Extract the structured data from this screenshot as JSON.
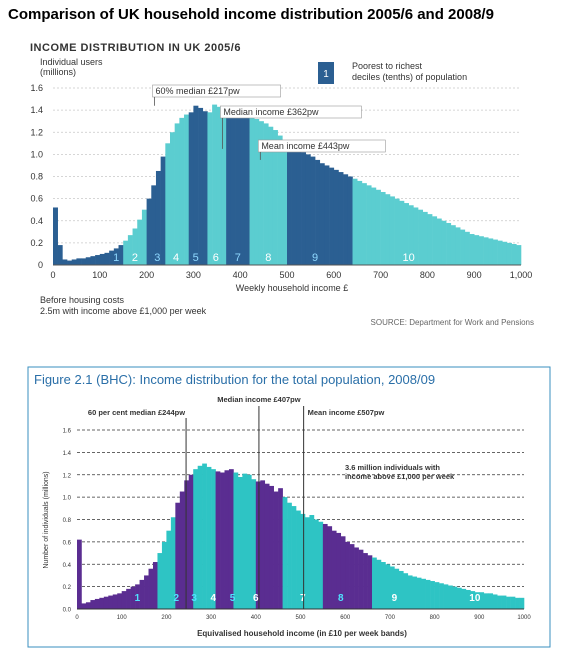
{
  "page": {
    "title": "Comparison of UK household income distribution 2005/6 and 2008/9"
  },
  "colors": {
    "dark": "#2b5f92",
    "light": "#5bcdd0",
    "purple": "#5a2d91",
    "teal": "#2ec4c4",
    "fig2_border": "#3a8fbf"
  },
  "chart_data": [
    {
      "type": "bar",
      "title": "INCOME DISTRIBUTION IN UK 2005/6",
      "ylabel_line1": "Individual users",
      "ylabel_line2": "(millions)",
      "xlabel": "Weekly household income £",
      "xlim": [
        0,
        1000
      ],
      "ylim": [
        0,
        1.6
      ],
      "grid": true,
      "bin_width": 10,
      "x_ticks": [
        "0",
        "100",
        "200",
        "300",
        "400",
        "500",
        "600",
        "700",
        "800",
        "900",
        "1,000"
      ],
      "x_tick_values": [
        0,
        100,
        200,
        300,
        400,
        500,
        600,
        700,
        800,
        900,
        1000
      ],
      "y_ticks": [
        "0",
        "0.2",
        "0.4",
        "0.6",
        "0.8",
        "1.0",
        "1.2",
        "1.4",
        "1.6"
      ],
      "y_tick_values": [
        0,
        0.2,
        0.4,
        0.6,
        0.8,
        1.0,
        1.2,
        1.4,
        1.6
      ],
      "legend": {
        "box_label": "1",
        "text_line1": "Poorest to richest",
        "text_line2": "deciles (tenths) of population"
      },
      "annotations": [
        {
          "text": "60% median £217pw",
          "x": 217
        },
        {
          "text": "Median income £362pw",
          "x": 362
        },
        {
          "text": "Mean income £443pw",
          "x": 443
        }
      ],
      "decile_labels": [
        "1",
        "2",
        "3",
        "4",
        "5",
        "6",
        "7",
        "8",
        "9",
        "10"
      ],
      "decile_boundaries": [
        0,
        155,
        205,
        245,
        290,
        330,
        375,
        425,
        505,
        640,
        1000
      ],
      "decile_label_x": [
        135,
        175,
        223,
        263,
        305,
        348,
        395,
        460,
        560,
        760
      ],
      "values": [
        0.52,
        0.18,
        0.05,
        0.04,
        0.05,
        0.06,
        0.06,
        0.07,
        0.08,
        0.09,
        0.1,
        0.11,
        0.13,
        0.15,
        0.18,
        0.22,
        0.27,
        0.33,
        0.41,
        0.5,
        0.6,
        0.72,
        0.85,
        0.98,
        1.1,
        1.2,
        1.28,
        1.33,
        1.36,
        1.38,
        1.44,
        1.42,
        1.39,
        1.38,
        1.45,
        1.43,
        1.4,
        1.42,
        1.43,
        1.38,
        1.37,
        1.35,
        1.33,
        1.32,
        1.3,
        1.28,
        1.25,
        1.22,
        1.17,
        1.12,
        1.08,
        1.05,
        1.05,
        1.02,
        1.0,
        0.98,
        0.95,
        0.92,
        0.9,
        0.88,
        0.86,
        0.84,
        0.82,
        0.8,
        0.78,
        0.76,
        0.74,
        0.72,
        0.7,
        0.68,
        0.66,
        0.64,
        0.62,
        0.6,
        0.58,
        0.56,
        0.54,
        0.52,
        0.5,
        0.48,
        0.46,
        0.44,
        0.42,
        0.4,
        0.38,
        0.36,
        0.34,
        0.32,
        0.3,
        0.28,
        0.27,
        0.26,
        0.25,
        0.24,
        0.23,
        0.22,
        0.21,
        0.2,
        0.19,
        0.18
      ],
      "footnote_line1": "Before housing costs",
      "footnote_line2": "2.5m with income above £1,000 per week",
      "source": "SOURCE: Department for Work and Pensions"
    },
    {
      "type": "bar",
      "title": "Figure 2.1 (BHC): Income distribution for the total population, 2008/09",
      "ylabel": "Number of individuals (millions)",
      "xlabel": "Equivalised household income (in £10 per week bands)",
      "xlim": [
        0,
        1000
      ],
      "ylim": [
        0,
        1.6
      ],
      "grid": true,
      "bin_width": 10,
      "x_ticks": [
        "0",
        "100",
        "200",
        "300",
        "400",
        "500",
        "600",
        "700",
        "800",
        "900",
        "1000"
      ],
      "x_tick_values": [
        0,
        100,
        200,
        300,
        400,
        500,
        600,
        700,
        800,
        900,
        1000
      ],
      "y_ticks": [
        "0.0",
        "0.2",
        "0.4",
        "0.6",
        "0.8",
        "1.0",
        "1.2",
        "1.4",
        "1.6"
      ],
      "y_tick_values": [
        0,
        0.2,
        0.4,
        0.6,
        0.8,
        1.0,
        1.2,
        1.4,
        1.6
      ],
      "annotations": [
        {
          "text": "Median income £407pw",
          "x": 407
        },
        {
          "text": "60 per cent median £244pw",
          "x": 244
        },
        {
          "text": "Mean income £507pw",
          "x": 507
        }
      ],
      "note_line1": "3.6 million individuals with",
      "note_line2": "income above £1,000 per week",
      "decile_labels": [
        "1",
        "2",
        "3",
        "4",
        "5",
        "6",
        "7",
        "8",
        "9",
        "10"
      ],
      "decile_boundaries": [
        0,
        185,
        220,
        265,
        310,
        355,
        405,
        465,
        555,
        665,
        1000
      ],
      "decile_label_x": [
        135,
        222,
        262,
        305,
        348,
        400,
        505,
        590,
        710,
        890
      ],
      "values": [
        0.62,
        0.05,
        0.06,
        0.08,
        0.09,
        0.1,
        0.11,
        0.12,
        0.13,
        0.14,
        0.16,
        0.18,
        0.2,
        0.22,
        0.26,
        0.3,
        0.36,
        0.42,
        0.5,
        0.6,
        0.7,
        0.82,
        0.95,
        1.05,
        1.15,
        1.2,
        1.25,
        1.28,
        1.3,
        1.27,
        1.25,
        1.23,
        1.22,
        1.24,
        1.25,
        1.22,
        1.18,
        1.21,
        1.2,
        1.16,
        1.14,
        1.15,
        1.12,
        1.1,
        1.05,
        1.08,
        1.0,
        0.95,
        0.92,
        0.88,
        0.85,
        0.82,
        0.84,
        0.8,
        0.78,
        0.76,
        0.74,
        0.7,
        0.68,
        0.65,
        0.6,
        0.58,
        0.55,
        0.53,
        0.5,
        0.48,
        0.46,
        0.44,
        0.42,
        0.4,
        0.38,
        0.36,
        0.34,
        0.32,
        0.3,
        0.29,
        0.28,
        0.27,
        0.26,
        0.25,
        0.24,
        0.23,
        0.22,
        0.21,
        0.2,
        0.19,
        0.18,
        0.17,
        0.16,
        0.15,
        0.15,
        0.14,
        0.14,
        0.13,
        0.12,
        0.12,
        0.11,
        0.11,
        0.1,
        0.1
      ]
    }
  ]
}
